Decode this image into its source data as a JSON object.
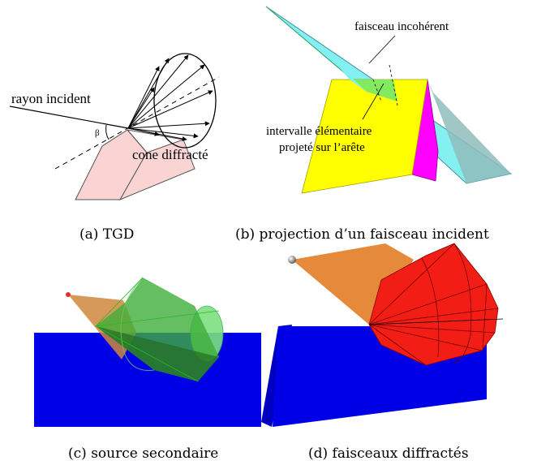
{
  "panel_a": {
    "label_incident": "rayon incident",
    "label_beta": "β",
    "label_cone": "cone diffracté",
    "caption": "(a)  TGD"
  },
  "panel_b": {
    "label_beam": "faisceau incohérent",
    "label_interval_1": "intervalle élémentaire",
    "label_interval_2": "projeté sur l’arête",
    "caption": "(b)  projection d’un faisceau incident"
  },
  "panel_c": {
    "caption": "(c)  source secondaire"
  },
  "panel_d": {
    "caption": "(d)  faisceaux diffractés"
  },
  "colors": {
    "wedge_pink": "#f9d4d2",
    "beam_cyan": "#7ef0f2",
    "face_yellow": "#ffff00",
    "face_magenta": "#ff00ff",
    "face_blue": "#0000e6",
    "beam_orange": "#e58a3a",
    "cone_green": "#5ec94d",
    "cone_red": "#f21d14"
  }
}
